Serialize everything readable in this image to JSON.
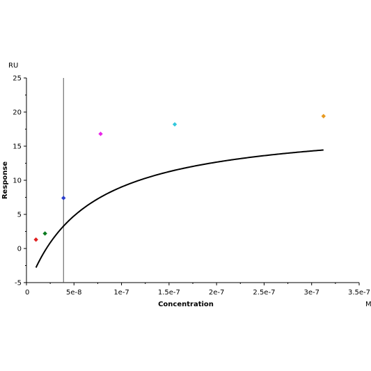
{
  "chart_data": {
    "type": "scatter",
    "title": "",
    "xlabel": "Concentration",
    "ylabel": "Response",
    "x_unit": "M",
    "y_unit": "RU",
    "xlim": [
      0,
      3.5e-07
    ],
    "ylim": [
      -5,
      25
    ],
    "x_ticks": [
      0,
      5e-08,
      1e-07,
      1.5e-07,
      2e-07,
      2.5e-07,
      3e-07,
      3.5e-07
    ],
    "x_tick_labels": [
      "0",
      "5e-8",
      "1e-7",
      "1.5e-7",
      "2e-7",
      "2.5e-7",
      "3e-7",
      "3.5e-7"
    ],
    "y_ticks": [
      -5,
      0,
      5,
      10,
      15,
      20,
      25
    ],
    "y_tick_labels": [
      "-5",
      "0",
      "5",
      "10",
      "15",
      "20",
      "25"
    ],
    "grid": false,
    "vertical_marker_x": 3.9e-08,
    "points": [
      {
        "x": 1e-08,
        "y": 1.3,
        "color": "#e02020"
      },
      {
        "x": 1.95e-08,
        "y": 2.2,
        "color": "#0a7a1e"
      },
      {
        "x": 3.9e-08,
        "y": 7.4,
        "color": "#2a3ecc"
      },
      {
        "x": 7.8e-08,
        "y": 16.8,
        "color": "#e826e8"
      },
      {
        "x": 1.56e-07,
        "y": 18.2,
        "color": "#33c8dc"
      },
      {
        "x": 3.125e-07,
        "y": 19.4,
        "color": "#e89a20"
      }
    ],
    "fit_curve": {
      "model": "steady-state affinity",
      "Rmax": 24.8,
      "KD": 6.3e-08,
      "offset": -6.2,
      "x_range": [
        1e-08,
        3.125e-07
      ],
      "color": "#000000"
    }
  }
}
